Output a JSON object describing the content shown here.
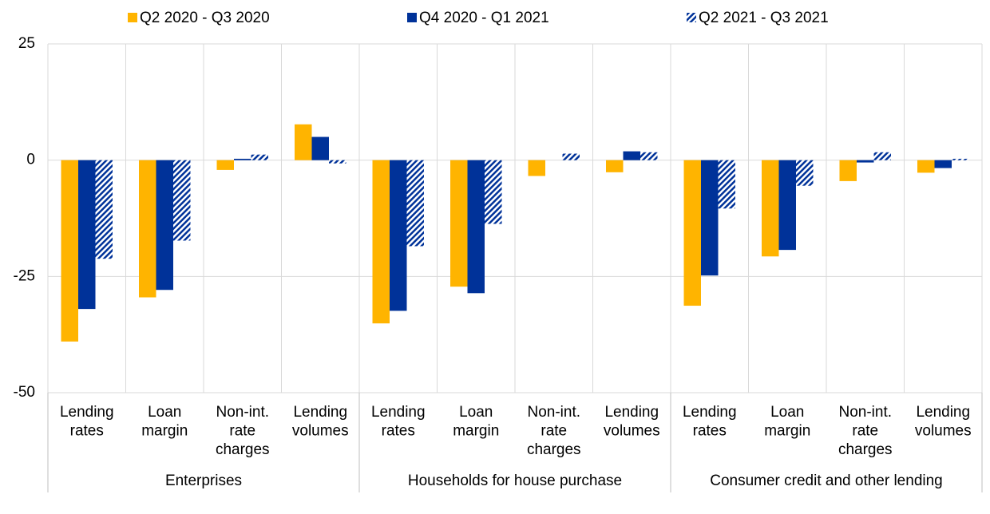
{
  "chart_data": {
    "type": "bar",
    "categories": [
      "Lending rates",
      "Loan margin",
      "Non-int. rate charges",
      "Lending volumes",
      "Lending rates",
      "Loan margin",
      "Non-int. rate charges",
      "Lending volumes",
      "Lending rates",
      "Loan margin",
      "Non-int. rate charges",
      "Lending volumes"
    ],
    "category_groups": [
      "Enterprises",
      "Households for house purchase",
      "Consumer credit and other lending"
    ],
    "series": [
      {
        "name": "Q2 2020 - Q3 2020",
        "color": "#ffb400",
        "values": [
          -39.0,
          -29.5,
          -2.1,
          7.7,
          -35.1,
          -27.2,
          -3.4,
          -2.6,
          -31.3,
          -20.7,
          -4.5,
          -2.7
        ]
      },
      {
        "name": "Q4 2020 - Q1 2021",
        "color": "#003299",
        "values": [
          -32.0,
          -27.9,
          0.3,
          5.0,
          -32.4,
          -28.6,
          0,
          1.9,
          -24.8,
          -19.3,
          -0.5,
          -1.7
        ]
      },
      {
        "name": "Q2 2021 - Q3 2021",
        "color": "#003299",
        "hatch": true,
        "values": [
          -21.2,
          -17.3,
          1.2,
          -0.7,
          -18.5,
          -13.7,
          1.4,
          1.7,
          -10.4,
          -5.5,
          1.7,
          0.3
        ]
      }
    ],
    "ylim": [
      -50,
      25
    ],
    "yticks": [
      -50,
      -25,
      0,
      25
    ],
    "grid": true
  }
}
